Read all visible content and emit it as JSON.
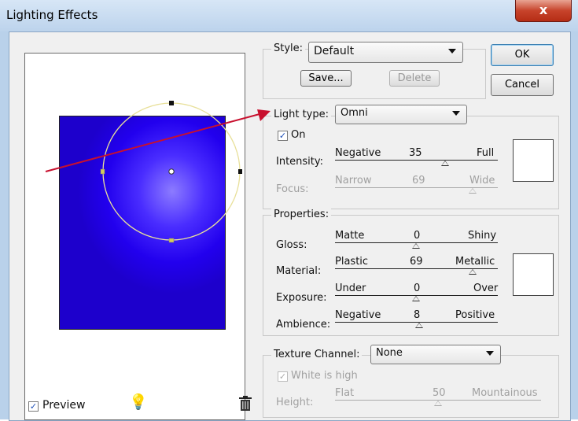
{
  "window": {
    "title": "Lighting Effects",
    "close_glyph": "x"
  },
  "buttons": {
    "ok": "OK",
    "cancel": "Cancel",
    "save": "Save...",
    "delete": "Delete"
  },
  "style": {
    "label": "Style:",
    "value": "Default"
  },
  "light_type": {
    "label": "Light type:",
    "value": "Omni",
    "on_label": "On",
    "on_checked": true
  },
  "intensity": {
    "label": "Intensity:",
    "min": "Negative",
    "value": "35",
    "max": "Full",
    "fraction": 0.675
  },
  "focus": {
    "label": "Focus:",
    "min": "Narrow",
    "value": "69",
    "max": "Wide",
    "fraction": 0.845,
    "disabled": true
  },
  "properties": {
    "title": "Properties:",
    "gloss": {
      "label": "Gloss:",
      "min": "Matte",
      "value": "0",
      "max": "Shiny",
      "fraction": 0.5
    },
    "material": {
      "label": "Material:",
      "min": "Plastic",
      "value": "69",
      "max": "Metallic",
      "fraction": 0.845
    },
    "exposure": {
      "label": "Exposure:",
      "min": "Under",
      "value": "0",
      "max": "Over",
      "fraction": 0.5
    },
    "ambience": {
      "label": "Ambience:",
      "min": "Negative",
      "value": "8",
      "max": "Positive",
      "fraction": 0.54
    }
  },
  "texture": {
    "label": "Texture Channel:",
    "value": "None",
    "white_is_high": "White is high",
    "white_checked": true,
    "height": {
      "label": "Height:",
      "min": "Flat",
      "value": "50",
      "max": "Mountainous",
      "fraction": 0.5
    }
  },
  "preview": {
    "label": "Preview",
    "checked": true
  },
  "icons": {
    "light": "light-bulb-icon",
    "trash": "trash-icon"
  },
  "colors": {
    "preview_blue": "#2200ee",
    "light_center": "#8c7bff",
    "title_bar": "#c6d9f0",
    "close_red": "#c7432b",
    "arrow_red": "#c8102e"
  }
}
